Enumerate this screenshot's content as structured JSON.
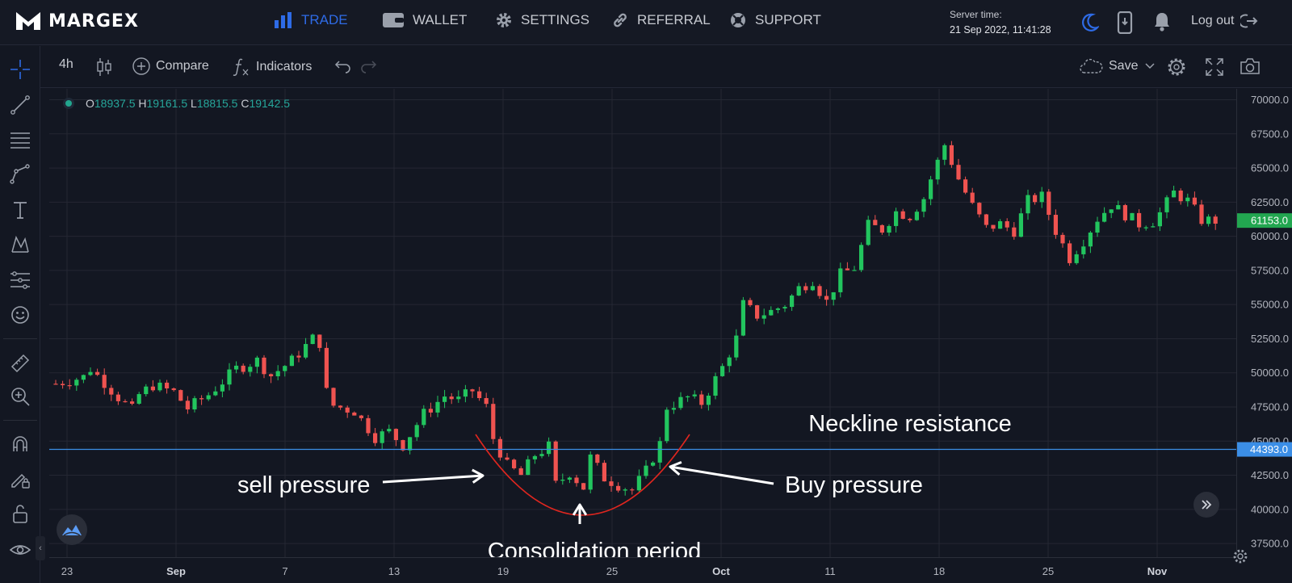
{
  "brand": {
    "name": "MARGEX"
  },
  "nav": {
    "trade": "TRADE",
    "wallet": "WALLET",
    "settings": "SETTINGS",
    "referral": "REFERRAL",
    "support": "SUPPORT"
  },
  "server": {
    "label": "Server time:",
    "time": "21 Sep 2022, 11:41:28"
  },
  "logout": "Log out",
  "toolbar": {
    "interval": "4h",
    "compare": "Compare",
    "indicators": "Indicators",
    "save": "Save"
  },
  "ohlc": {
    "o_label": "O",
    "o": "18937.5",
    "h_label": "H",
    "h": "19161.5",
    "l_label": "L",
    "l": "18815.5",
    "c_label": "C",
    "c": "19142.5"
  },
  "colors": {
    "up": "#26a69a",
    "up_bright": "#22c55e",
    "down": "#ef5350",
    "accent": "#2e6be6",
    "neckline": "#3b8ee6",
    "curve": "#e0261f"
  },
  "chart_data": {
    "type": "candlestick",
    "ylim": [
      36500,
      70800
    ],
    "price_ticks": [
      "70000.0",
      "67500.0",
      "65000.0",
      "62500.0",
      "60000.0",
      "57500.0",
      "55000.0",
      "52500.0",
      "50000.0",
      "47500.0",
      "45000.0",
      "42500.0",
      "40000.0",
      "37500.0"
    ],
    "time_ticks": [
      "23",
      "Sep",
      "7",
      "13",
      "19",
      "25",
      "Oct",
      "11",
      "18",
      "25",
      "Nov"
    ],
    "time_ticks_bold": [
      "Sep",
      "Oct",
      "Nov"
    ],
    "current_price": "61153.0",
    "neckline_price": "44393.0",
    "annotations": {
      "neckline": "Neckline resistance",
      "sell": "sell pressure",
      "buy": "Buy pressure",
      "consolidation": "Consolidation period"
    },
    "path": [
      [
        0,
        49200
      ],
      [
        4,
        49700
      ],
      [
        5,
        50300
      ],
      [
        7,
        49300
      ],
      [
        9,
        48200
      ],
      [
        11,
        47300
      ],
      [
        12,
        48400
      ],
      [
        14,
        49100
      ],
      [
        17,
        48600
      ],
      [
        19,
        47400
      ],
      [
        22,
        48400
      ],
      [
        26,
        50300
      ],
      [
        29,
        50900
      ],
      [
        31,
        49800
      ],
      [
        34,
        50900
      ],
      [
        37,
        52500
      ],
      [
        38,
        52200
      ],
      [
        39,
        48600
      ],
      [
        40,
        47600
      ],
      [
        43,
        47200
      ],
      [
        46,
        45300
      ],
      [
        48,
        45700
      ],
      [
        50,
        44700
      ],
      [
        53,
        47000
      ],
      [
        56,
        48300
      ],
      [
        58,
        48000
      ],
      [
        60,
        48700
      ],
      [
        62,
        47500
      ],
      [
        63,
        45200
      ],
      [
        65,
        43200
      ],
      [
        67,
        42500
      ],
      [
        69,
        44000
      ],
      [
        71,
        44600
      ],
      [
        72,
        41800
      ],
      [
        74,
        42700
      ],
      [
        76,
        41600
      ],
      [
        77,
        43800
      ],
      [
        79,
        42300
      ],
      [
        81,
        41800
      ],
      [
        83,
        41400
      ],
      [
        85,
        42800
      ],
      [
        87,
        44800
      ],
      [
        88,
        47500
      ],
      [
        91,
        48200
      ],
      [
        93,
        47800
      ],
      [
        96,
        50400
      ],
      [
        98,
        52500
      ],
      [
        99,
        55000
      ],
      [
        101,
        54200
      ],
      [
        103,
        54500
      ],
      [
        105,
        55000
      ],
      [
        107,
        56200
      ],
      [
        109,
        56800
      ],
      [
        111,
        55200
      ],
      [
        113,
        57200
      ],
      [
        115,
        57700
      ],
      [
        117,
        60800
      ],
      [
        119,
        60500
      ],
      [
        121,
        61800
      ],
      [
        123,
        61500
      ],
      [
        125,
        62800
      ],
      [
        126,
        64200
      ],
      [
        128,
        66700
      ],
      [
        130,
        64200
      ],
      [
        132,
        62200
      ],
      [
        134,
        60600
      ],
      [
        136,
        60900
      ],
      [
        138,
        60400
      ],
      [
        140,
        62600
      ],
      [
        142,
        62900
      ],
      [
        144,
        60400
      ],
      [
        146,
        58400
      ],
      [
        148,
        59700
      ],
      [
        150,
        61300
      ],
      [
        152,
        62300
      ],
      [
        154,
        61600
      ],
      [
        156,
        60900
      ],
      [
        158,
        61100
      ],
      [
        159,
        61700
      ],
      [
        161,
        63200
      ],
      [
        163,
        62600
      ],
      [
        165,
        61200
      ],
      [
        167,
        61150
      ]
    ]
  }
}
